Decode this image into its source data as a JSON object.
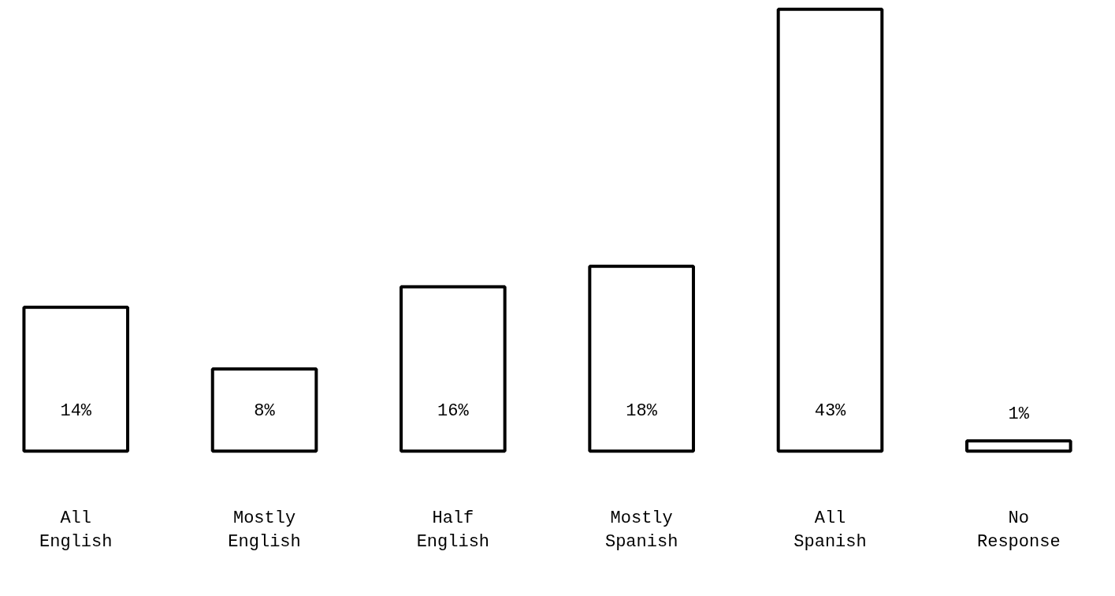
{
  "chart_data": {
    "type": "bar",
    "categories": [
      "All English",
      "Mostly English",
      "Half English",
      "Mostly Spanish",
      "All Spanish",
      "No Response"
    ],
    "values": [
      14,
      8,
      16,
      18,
      43,
      1
    ],
    "value_labels": [
      "14%",
      "8%",
      "16%",
      "18%",
      "43%",
      "1%"
    ],
    "color": "#ffffff",
    "grid": false
  }
}
